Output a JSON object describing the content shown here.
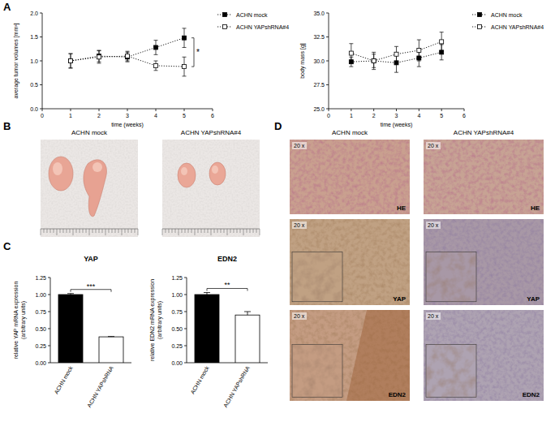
{
  "panel_labels": [
    "A",
    "B",
    "C",
    "D"
  ],
  "chart_data": [
    {
      "type": "line",
      "x_label": "time (weeks)",
      "y_label": "average tumor volumes [mm³]",
      "x": [
        1,
        2,
        3,
        4,
        5
      ],
      "xlim": [
        0,
        6
      ],
      "xticks": [
        0,
        1,
        2,
        3,
        4,
        5,
        6
      ],
      "ylim": [
        0,
        2
      ],
      "yticks": [
        {
          "value": 0,
          "label": "0.0"
        },
        0.5,
        {
          "value": 1,
          "label": "1.0"
        },
        1.5,
        {
          "value": 2,
          "label": "2.0"
        }
      ],
      "legend": "right",
      "annotation": "*",
      "series": [
        {
          "name": "ACHN mock",
          "color": "#000000",
          "marker": "filled-square",
          "line_style": "dotted",
          "values": [
            1.0,
            1.1,
            1.08,
            1.28,
            1.48
          ],
          "errors": [
            0.15,
            0.12,
            0.1,
            0.15,
            0.2
          ]
        },
        {
          "name": "ACHN YAPshRNA#4",
          "color": "#000000",
          "marker": "open-square",
          "line_style": "dotted",
          "values": [
            1.0,
            1.08,
            1.1,
            0.9,
            0.88
          ],
          "errors": [
            0.15,
            0.13,
            0.1,
            0.1,
            0.2
          ]
        }
      ]
    },
    {
      "type": "line",
      "x_label": "time (weeks)",
      "y_label": "body mass [g]",
      "x": [
        1,
        2,
        3,
        4,
        5
      ],
      "xlim": [
        0,
        6
      ],
      "xticks": [
        0,
        1,
        2,
        3,
        4,
        5,
        6
      ],
      "ylim": [
        25,
        35
      ],
      "yticks": [
        {
          "value": 25,
          "label": "25.0"
        },
        27.5,
        {
          "value": 30,
          "label": "30.0"
        },
        32.5,
        {
          "value": 35,
          "label": "35.0"
        }
      ],
      "legend": "right",
      "series": [
        {
          "name": "ACHN mock",
          "color": "#000000",
          "marker": "filled-square",
          "line_style": "dotted",
          "values": [
            29.9,
            30.0,
            29.8,
            30.3,
            30.9
          ],
          "errors": [
            0.5,
            0.9,
            1.0,
            0.9,
            0.8
          ]
        },
        {
          "name": "ACHN YAPshRNA#4",
          "color": "#000000",
          "marker": "open-square",
          "line_style": "dotted",
          "values": [
            30.8,
            30.0,
            30.7,
            31.1,
            32.0
          ],
          "errors": [
            1.0,
            0.7,
            0.8,
            1.1,
            1.0
          ]
        }
      ]
    },
    {
      "type": "bar",
      "title": "YAP",
      "y_label": [
        "relative YAP mRNA expression",
        "(arbitrary units)"
      ],
      "categories": [
        "ACHN mock",
        "ACHN YAPshRNA"
      ],
      "values": [
        1.0,
        0.38
      ],
      "errors": [
        0.015,
        0.005
      ],
      "colors": [
        "#000000",
        "#ffffff"
      ],
      "ylim": [
        0,
        1.25
      ],
      "yticks": [
        {
          "value": 0,
          "label": "0.00"
        },
        0.25,
        {
          "value": 0.5,
          "label": "0.50"
        },
        0.75,
        {
          "value": 1,
          "label": "1.00"
        },
        1.25
      ],
      "annotation": "***"
    },
    {
      "type": "bar",
      "title": "EDN2",
      "y_label": [
        "relative EDN2 mRNA expression",
        "(arbitrary units)"
      ],
      "categories": [
        "ACHN mock",
        "ACHN YAPshRNA"
      ],
      "values": [
        1.0,
        0.7
      ],
      "errors": [
        0.03,
        0.05
      ],
      "colors": [
        "#000000",
        "#ffffff"
      ],
      "ylim": [
        0,
        1.25
      ],
      "yticks": [
        {
          "value": 0,
          "label": "0.00"
        },
        0.25,
        {
          "value": 0.5,
          "label": "0.50"
        },
        0.75,
        {
          "value": 1,
          "label": "1.00"
        },
        1.25
      ],
      "annotation": "**"
    }
  ],
  "photos": {
    "titles": [
      "ACHN mock",
      "ACHN YAPshRNA#4"
    ]
  },
  "histology": {
    "titles": [
      "ACHN mock",
      "ACHN YAPshRNA#4"
    ],
    "magnification": "20 x",
    "stains": [
      "HE",
      "YAP",
      "EDN2"
    ]
  }
}
